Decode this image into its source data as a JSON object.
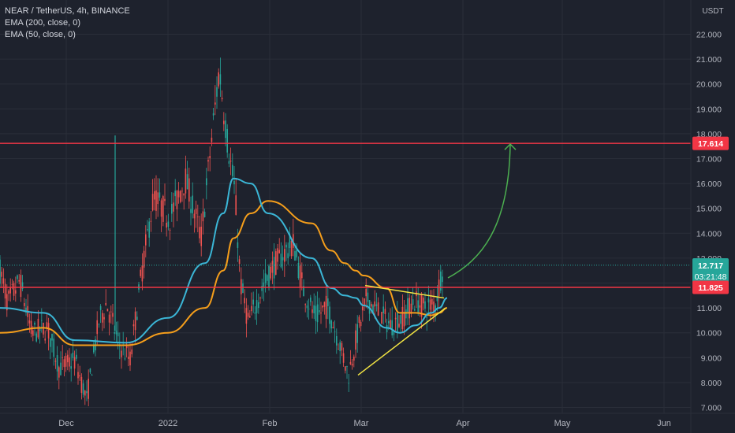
{
  "header": {
    "symbol_line": "NEAR / TetherUS, 4h, BINANCE",
    "ema200_label": "EMA (200, close, 0)",
    "ema50_label": "EMA (50, close, 0)"
  },
  "price_axis": {
    "currency": "USDT",
    "ticks": [
      "7.000",
      "8.000",
      "9.000",
      "10.000",
      "11.000",
      "12.000",
      "13.000",
      "14.000",
      "15.000",
      "16.000",
      "17.000",
      "18.000",
      "19.000",
      "20.000",
      "21.000",
      "22.000"
    ],
    "current_price": "12.717",
    "countdown": "03:21:48",
    "resistance_label": "17.614",
    "support_label": "11.825"
  },
  "time_axis": {
    "labels": [
      "Dec",
      "2022",
      "Feb",
      "Mar",
      "Apr",
      "May",
      "Jun"
    ]
  },
  "colors": {
    "background": "#1e222d",
    "candle_up": "#26a69a",
    "candle_down": "#ef5350",
    "ema_fast": "#3bb6d6",
    "ema_slow": "#f59e1b",
    "level_line": "#f23645",
    "triangle": "#f2e443",
    "arrow": "#4caf50",
    "price_badge": "#26a69a"
  },
  "chart_data": {
    "type": "line",
    "ylim": [
      6.8,
      23.3
    ],
    "x": [
      "Nov 20",
      "Dec 1",
      "Dec 10",
      "Dec 20",
      "Jan 1",
      "Jan 10",
      "Jan 16",
      "Jan 20",
      "Jan 25",
      "Feb 1",
      "Feb 10",
      "Feb 15",
      "Feb 20",
      "Feb 24",
      "Mar 1",
      "Mar 5",
      "Mar 10",
      "Mar 15",
      "Mar 20",
      "Mar 22",
      "Mar 24"
    ],
    "series": [
      {
        "name": "EMA (50, close, 0)",
        "values": [
          11.0,
          10.8,
          9.7,
          9.6,
          10.6,
          12.8,
          14.8,
          16.2,
          16.0,
          14.8,
          13.0,
          11.8,
          11.5,
          11.4,
          11.1,
          10.2,
          10.0,
          10.3,
          10.8,
          11.0,
          11.4
        ]
      },
      {
        "name": "EMA (200, close, 0)",
        "values": [
          10.0,
          10.2,
          9.5,
          9.5,
          10.0,
          11.0,
          12.5,
          13.8,
          14.8,
          15.3,
          14.4,
          13.3,
          12.8,
          12.5,
          12.3,
          11.8,
          10.8,
          10.8,
          10.7,
          10.8,
          11.0
        ]
      }
    ],
    "price_range": {
      "high": 20.6,
      "low": 7.0,
      "last": 12.717
    },
    "levels": [
      {
        "label": "17.614",
        "value": 17.614
      },
      {
        "label": "11.825",
        "value": 11.825
      }
    ],
    "triangle": {
      "upper": [
        11.9,
        11.4
      ],
      "lower": [
        8.3,
        11.0
      ]
    },
    "projection_target": 17.614,
    "grid": true
  }
}
